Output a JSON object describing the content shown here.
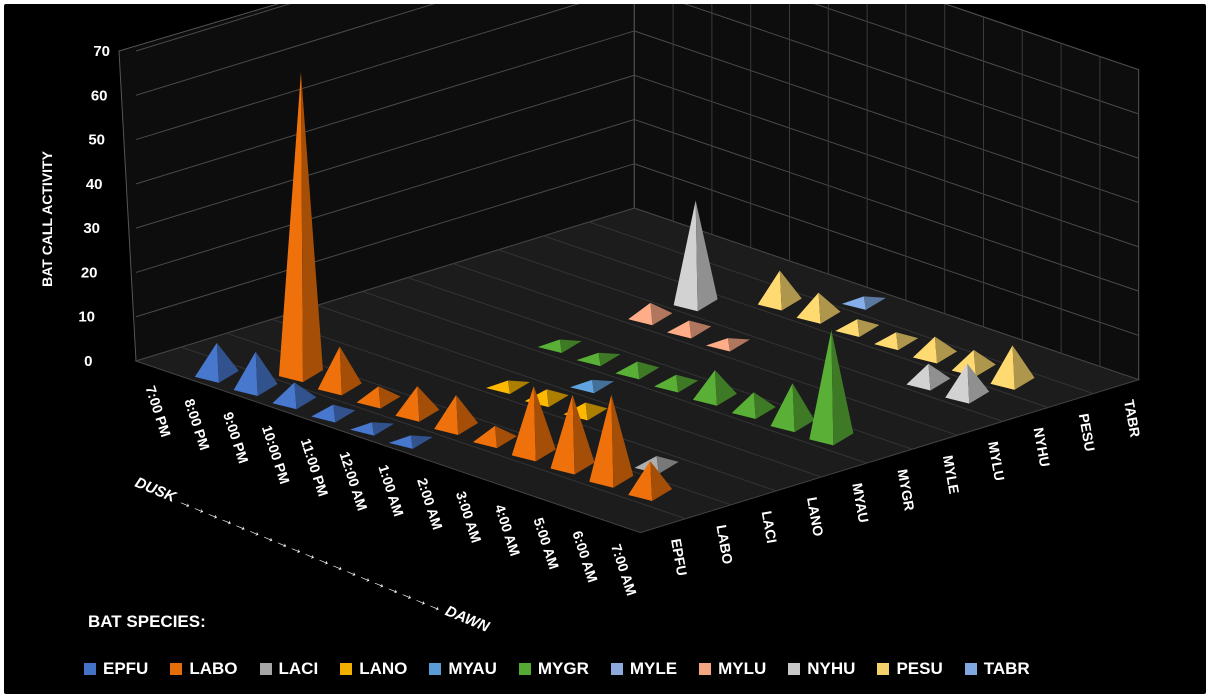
{
  "chart_data": {
    "type": "3d-cone",
    "ylabel": "BAT CALL ACTIVITY",
    "ylim": [
      0,
      70
    ],
    "y_ticks": [
      "70",
      "60",
      "50",
      "40",
      "30",
      "20",
      "10",
      "0"
    ],
    "categories": [
      "7:00 PM",
      "8:00 PM",
      "9:00 PM",
      "10:00 PM",
      "11:00 PM",
      "12:00 AM",
      "1:00 AM",
      "2:00 AM",
      "3:00 AM",
      "4:00 AM",
      "5:00 AM",
      "6:00 AM",
      "7:00 AM"
    ],
    "x_annotation": "DUSK →→→→→→→→→→→→→→→→→→→ DAWN",
    "legend_title": "BAT SPECIES:",
    "grid": true,
    "legend_position": "bottom",
    "series": [
      {
        "name": "EPFU",
        "color": "#4472C4",
        "values": [
          0,
          7,
          8,
          4,
          2,
          1,
          1,
          0,
          0,
          0,
          0,
          0,
          0
        ]
      },
      {
        "name": "LABO",
        "color": "#E46C0A",
        "values": [
          0,
          0,
          68,
          9,
          3,
          6,
          7,
          3,
          15,
          16,
          19,
          7,
          0
        ]
      },
      {
        "name": "LACI",
        "color": "#A6A6A6",
        "values": [
          0,
          0,
          0,
          0,
          0,
          0,
          0,
          0,
          0,
          0,
          2,
          0,
          0
        ]
      },
      {
        "name": "LANO",
        "color": "#F0B000",
        "values": [
          0,
          0,
          0,
          0,
          0,
          1,
          2,
          2,
          0,
          0,
          0,
          0,
          0
        ]
      },
      {
        "name": "MYAU",
        "color": "#5B9BD5",
        "values": [
          0,
          0,
          0,
          0,
          0,
          0,
          1,
          0,
          0,
          0,
          0,
          0,
          0
        ]
      },
      {
        "name": "MYGR",
        "color": "#56A834",
        "values": [
          0,
          0,
          0,
          0,
          1,
          1,
          2,
          2,
          6,
          4,
          9,
          24,
          0
        ]
      },
      {
        "name": "MYLE",
        "color": "#8EA9DB",
        "values": [
          0,
          0,
          0,
          0,
          0,
          0,
          0,
          0,
          0,
          0,
          0,
          0,
          0
        ]
      },
      {
        "name": "MYLU",
        "color": "#F4A582",
        "values": [
          0,
          0,
          0,
          0,
          2,
          1,
          1,
          0,
          0,
          0,
          0,
          0,
          0
        ]
      },
      {
        "name": "NYHU",
        "color": "#C8C8C8",
        "values": [
          0,
          0,
          0,
          0,
          23,
          0,
          0,
          0,
          0,
          0,
          0,
          0,
          0
        ]
      },
      {
        "name": "PESU",
        "color": "#F2D06B",
        "values": [
          0,
          0,
          0,
          0,
          0,
          7,
          5,
          2,
          2,
          1,
          1,
          4,
          0
        ]
      },
      {
        "name": "TABR",
        "color": "#7FA7E0",
        "values": [
          0,
          0,
          0,
          0,
          0,
          0,
          1,
          0,
          0,
          0,
          0,
          0,
          0
        ]
      }
    ],
    "extra_cones": [
      {
        "series": "MYLU",
        "categories": [
          "11:00 PM",
          "12:00 AM"
        ],
        "values": [
          3,
          2
        ]
      },
      {
        "series": "NYHU",
        "categories": [
          "5:00 AM",
          "6:00 AM"
        ],
        "values": [
          4,
          7
        ]
      },
      {
        "series": "PESU",
        "categories": [
          "4:00 AM",
          "5:00 AM",
          "6:00 AM"
        ],
        "values": [
          4,
          4,
          8
        ]
      }
    ]
  }
}
